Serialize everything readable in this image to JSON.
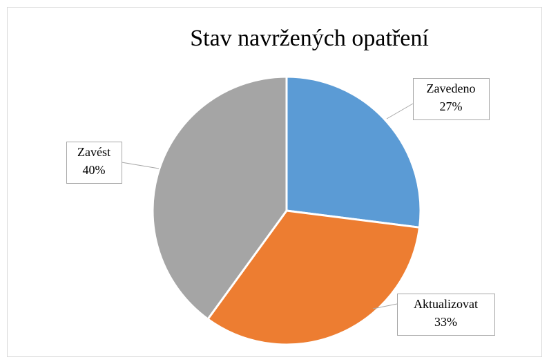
{
  "chart_data": {
    "type": "pie",
    "title": "Stav navržených opatření",
    "categories": [
      "Zavedeno",
      "Aktualizovat",
      "Zavést"
    ],
    "values": [
      27,
      33,
      40
    ],
    "value_labels": [
      "27%",
      "33%",
      "40%"
    ],
    "colors": [
      "#5b9bd5",
      "#ed7d31",
      "#a5a5a5"
    ]
  }
}
